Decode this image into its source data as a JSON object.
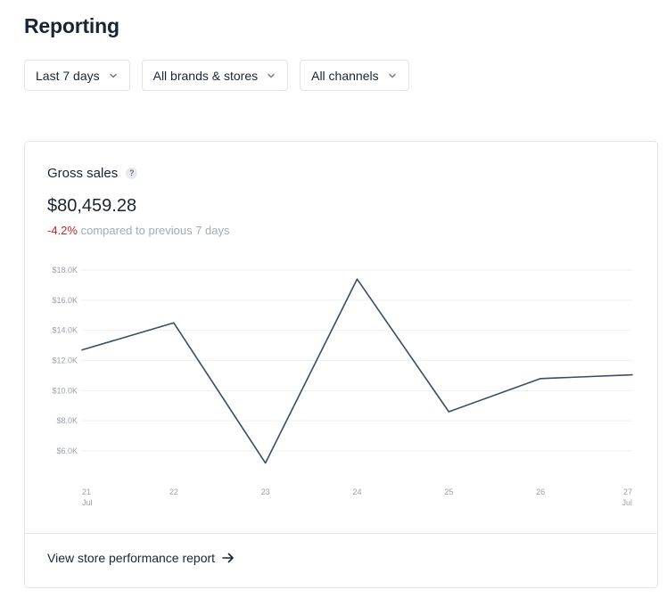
{
  "page": {
    "title": "Reporting"
  },
  "filters": [
    {
      "label": "Last 7 days"
    },
    {
      "label": "All brands & stores"
    },
    {
      "label": "All channels"
    }
  ],
  "card": {
    "title": "Gross sales",
    "help_glyph": "?",
    "value": "$80,459.28",
    "delta": "-4.2%",
    "comparison_text": "compared to previous 7 days",
    "footer_link": "View store performance report"
  },
  "icons": {
    "filter_chevron": "chevron-down-icon",
    "help": "question-mark-icon",
    "footer": "arrow-right-icon"
  },
  "colors": {
    "line": "#3b4d61",
    "delta_negative": "#c0272d",
    "muted_text": "#a4abb4",
    "gridline": "#eef0f2"
  },
  "chart_data": {
    "type": "line",
    "x": [
      "21",
      "22",
      "23",
      "24",
      "25",
      "26",
      "27"
    ],
    "x_sublabels": [
      "Jul",
      "",
      "",
      "",
      "",
      "",
      "Jul"
    ],
    "values": [
      12700,
      14500,
      5200,
      17400,
      8600,
      10800,
      11050
    ],
    "yticks": [
      "$6.0K",
      "$8.0K",
      "$10.0K",
      "$12.0K",
      "$14.0K",
      "$16.0K",
      "$18.0K"
    ],
    "ytick_values": [
      6000,
      8000,
      10000,
      12000,
      14000,
      16000,
      18000
    ],
    "ylim": [
      6000,
      18000
    ],
    "grid": true,
    "title": "",
    "xlabel": "",
    "ylabel": ""
  }
}
